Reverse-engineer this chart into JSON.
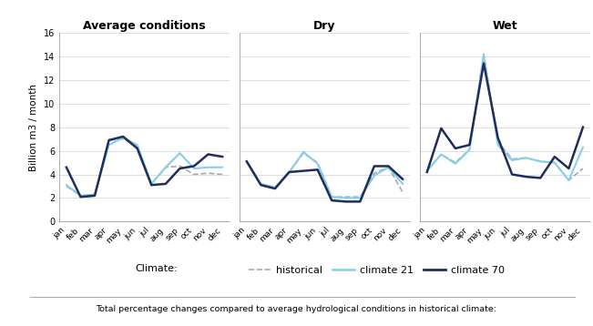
{
  "months": [
    "jan",
    "feb",
    "mar",
    "apr",
    "may",
    "jun",
    "jul",
    "aug",
    "sep",
    "oct",
    "nov",
    "dec"
  ],
  "avg_historical": [
    3.0,
    2.2,
    2.3,
    6.9,
    7.0,
    6.4,
    3.2,
    4.6,
    4.7,
    4.0,
    4.1,
    4.0
  ],
  "avg_climate21": [
    3.1,
    2.2,
    2.3,
    6.5,
    7.1,
    6.5,
    3.2,
    4.6,
    5.8,
    4.5,
    4.6,
    4.6
  ],
  "avg_climate70": [
    4.6,
    2.1,
    2.2,
    6.9,
    7.2,
    6.2,
    3.1,
    3.2,
    4.5,
    4.7,
    5.7,
    5.5
  ],
  "dry_historical": [
    5.1,
    3.2,
    2.9,
    4.2,
    5.8,
    5.0,
    2.1,
    2.1,
    2.1,
    4.1,
    4.6,
    2.5
  ],
  "dry_climate21": [
    5.1,
    3.2,
    2.9,
    4.2,
    5.9,
    4.9,
    2.1,
    2.0,
    2.0,
    3.9,
    4.6,
    3.2
  ],
  "dry_climate70": [
    5.1,
    3.1,
    2.8,
    4.2,
    4.3,
    4.4,
    1.8,
    1.7,
    1.7,
    4.7,
    4.7,
    3.6
  ],
  "wet_historical": [
    4.3,
    5.7,
    5.0,
    6.1,
    14.2,
    6.8,
    5.3,
    5.4,
    5.1,
    5.0,
    3.5,
    4.5
  ],
  "wet_climate21": [
    4.3,
    5.7,
    4.9,
    6.1,
    14.1,
    6.5,
    5.2,
    5.4,
    5.1,
    5.0,
    3.5,
    6.3
  ],
  "wet_climate70": [
    4.2,
    7.9,
    6.2,
    6.5,
    13.4,
    7.1,
    4.0,
    3.8,
    3.7,
    5.5,
    4.5,
    8.0
  ],
  "color_historical": "#aaaaaa",
  "color_climate21": "#87CEEB",
  "color_climate70": "#1e2d5a",
  "linestyle_historical": "--",
  "linestyle_climate21": "-",
  "linestyle_climate70": "-",
  "linewidth_historical": 1.2,
  "linewidth_climate21": 1.5,
  "linewidth_climate70": 1.8,
  "ylim": [
    0,
    16
  ],
  "yticks": [
    0,
    2,
    4,
    6,
    8,
    10,
    12,
    14,
    16
  ],
  "ylabel": "Billion m3 / month",
  "title_avg": "Average conditions",
  "title_dry": "Dry",
  "title_wet": "Wet",
  "legend_label_historical": "historical",
  "legend_label_c21": "climate 21",
  "legend_label_c70": "climate 70",
  "footer_text": "Total percentage changes compared to average hydrological conditions in historical climate:",
  "legend_prefix": "Climate:",
  "grid_color": "#d8d8d8",
  "grid_linewidth": 0.6
}
